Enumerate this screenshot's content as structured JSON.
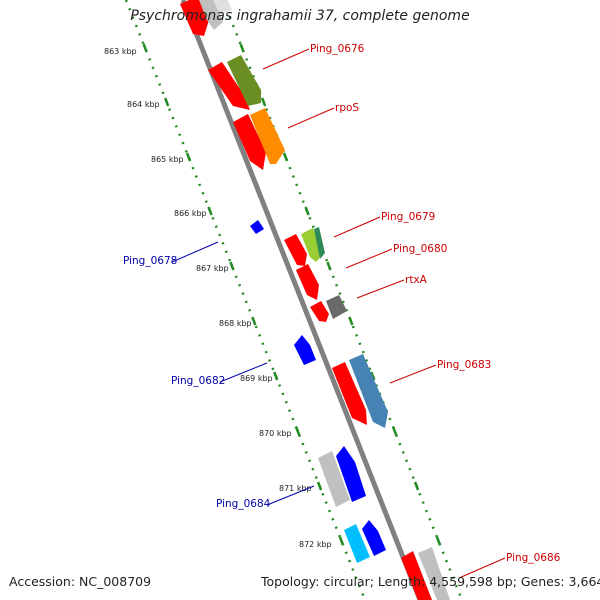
{
  "title": "Psychromonas ingrahamii 37, complete genome",
  "footer": {
    "accession": "Accession: NC_008709",
    "summary": "Topology: circular; Length: 4,559,598 bp; Genes: 3,664"
  },
  "ticks": [
    "863 kbp",
    "864 kbp",
    "865 kbp",
    "866 kbp",
    "867 kbp",
    "868 kbp",
    "869 kbp",
    "870 kbp",
    "871 kbp",
    "872 kbp"
  ],
  "genes": [
    {
      "label": "Ping_0676",
      "strand": "forward",
      "color": "#6b8e23"
    },
    {
      "label": "rpoS",
      "strand": "forward",
      "color": "#ff8c00"
    },
    {
      "label": "Ping_0679",
      "strand": "forward",
      "color": "#9acd32"
    },
    {
      "label": "Ping_0680",
      "strand": "forward",
      "color": "#ff0000"
    },
    {
      "label": "rtxA",
      "strand": "forward",
      "color": "#696969"
    },
    {
      "label": "Ping_0683",
      "strand": "forward",
      "color": "#4682b4"
    },
    {
      "label": "Ping_0686",
      "strand": "forward",
      "color": "#ff0000"
    },
    {
      "label": "Ping_0678",
      "strand": "reverse",
      "color": "#0000ff"
    },
    {
      "label": "Ping_0682",
      "strand": "reverse",
      "color": "#0000ff"
    },
    {
      "label": "Ping_0684",
      "strand": "reverse",
      "color": "#0000ff"
    }
  ],
  "colors": {
    "forward_label": "#cc0000",
    "reverse_label": "#0000aa",
    "cds": "#ff0000",
    "backbone": "#808080",
    "ruler": "#228b22"
  }
}
